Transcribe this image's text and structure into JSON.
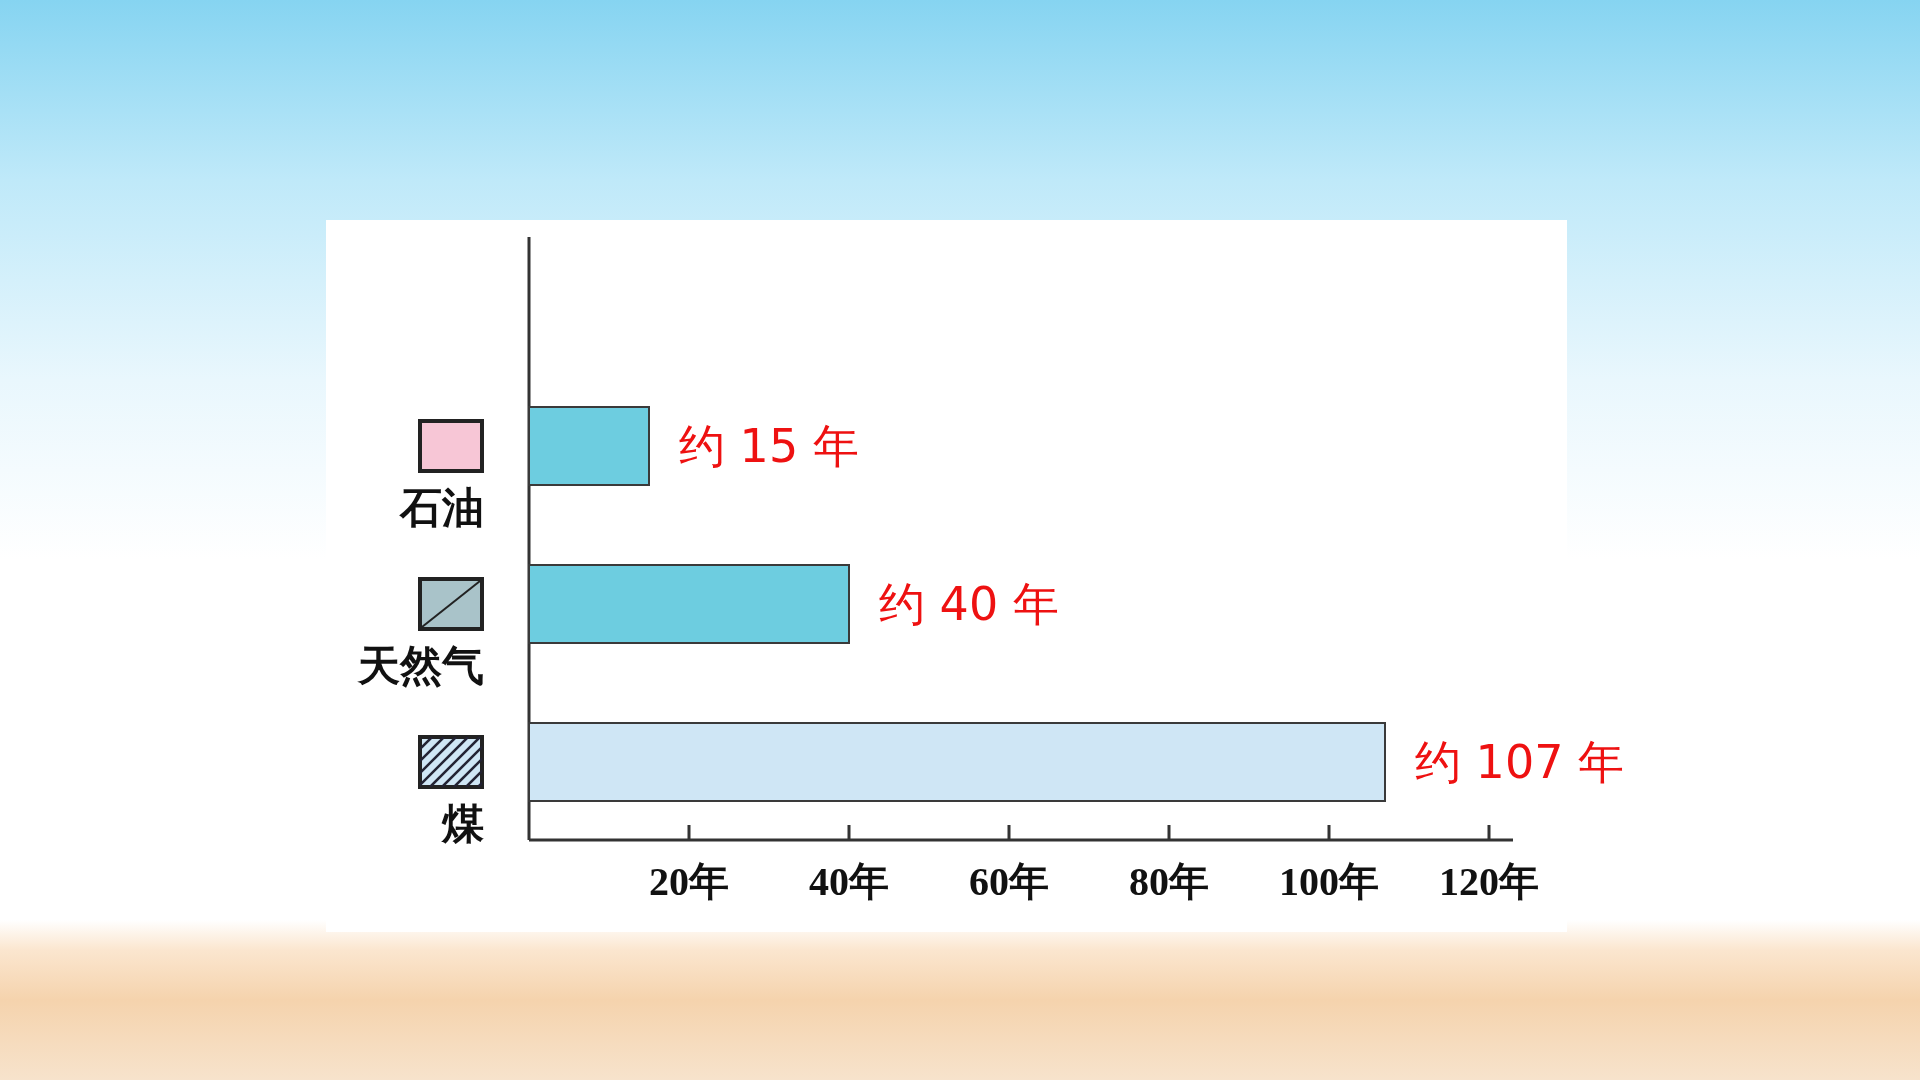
{
  "chart_data": {
    "type": "bar",
    "orientation": "horizontal",
    "categories": [
      "石油",
      "天然气",
      "煤"
    ],
    "values": [
      15,
      40,
      107
    ],
    "colors": [
      "#6dcde0",
      "#6dcde0",
      "#cfe6f5"
    ],
    "value_labels": [
      "约 15 年",
      "约 40 年",
      "约 107 年"
    ],
    "xlim": [
      0,
      123
    ],
    "xticks": [
      {
        "value": 20,
        "label": "20年"
      },
      {
        "value": 40,
        "label": "40年"
      },
      {
        "value": 60,
        "label": "60年"
      },
      {
        "value": 80,
        "label": "80年"
      },
      {
        "value": 100,
        "label": "100年"
      },
      {
        "value": 120,
        "label": "120年"
      }
    ]
  }
}
